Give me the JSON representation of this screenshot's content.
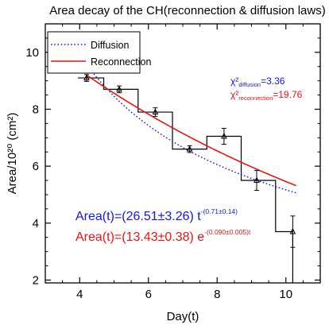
{
  "chart_data": {
    "type": "line",
    "title": "Area decay of the CH(reconnection & diffusion laws)",
    "xlabel": "Day(t)",
    "ylabel": "Area/10²⁰ (cm²)",
    "xlim": [
      3.0,
      11.0
    ],
    "ylim": [
      1.9,
      11.0
    ],
    "x_ticks": [
      4,
      6,
      8,
      10
    ],
    "y_ticks": [
      2,
      4,
      6,
      8,
      10
    ],
    "grid": false,
    "legend_position": "top-left",
    "observations": {
      "x": [
        4.2,
        5.15,
        6.2,
        7.2,
        8.2,
        9.15,
        10.2
      ],
      "y": [
        9.1,
        8.7,
        7.9,
        6.6,
        7.05,
        5.5,
        3.7
      ],
      "yerr": [
        0.12,
        0.12,
        0.15,
        0.12,
        0.28,
        0.35,
        0.55
      ]
    },
    "step_histogram": {
      "edges": [
        3.95,
        4.7,
        5.7,
        6.7,
        7.7,
        8.7,
        9.7,
        10.2
      ],
      "values": [
        9.1,
        8.7,
        7.9,
        6.6,
        7.05,
        5.5,
        3.7
      ]
    },
    "series": [
      {
        "name": "Diffusion",
        "color": "#1515e8",
        "style": "dotted",
        "x_range": [
          3.95,
          10.3
        ],
        "model": "power",
        "A": 26.51,
        "p": 0.71
      },
      {
        "name": "Reconnection",
        "color": "#e81515",
        "style": "solid",
        "x_range": [
          4.2,
          10.3
        ],
        "model": "exp",
        "A": 13.43,
        "k": 0.09
      }
    ],
    "annotations": {
      "chi_symbol": "χ²",
      "chi_diffusion_sub": "diffusion",
      "chi_diffusion_val": "=3.36",
      "chi_reconnection_sub": "reconnection",
      "chi_reconnection_val": "=19.76",
      "fit_diffusion_main": "Area(t)=(26.51±3.26) t",
      "fit_diffusion_exp": "-(0.71±0.14)",
      "fit_reconnection_main": "Area(t)=(13.43±0.38) e",
      "fit_reconnection_exp": "-(0.090±0.005)t"
    }
  }
}
